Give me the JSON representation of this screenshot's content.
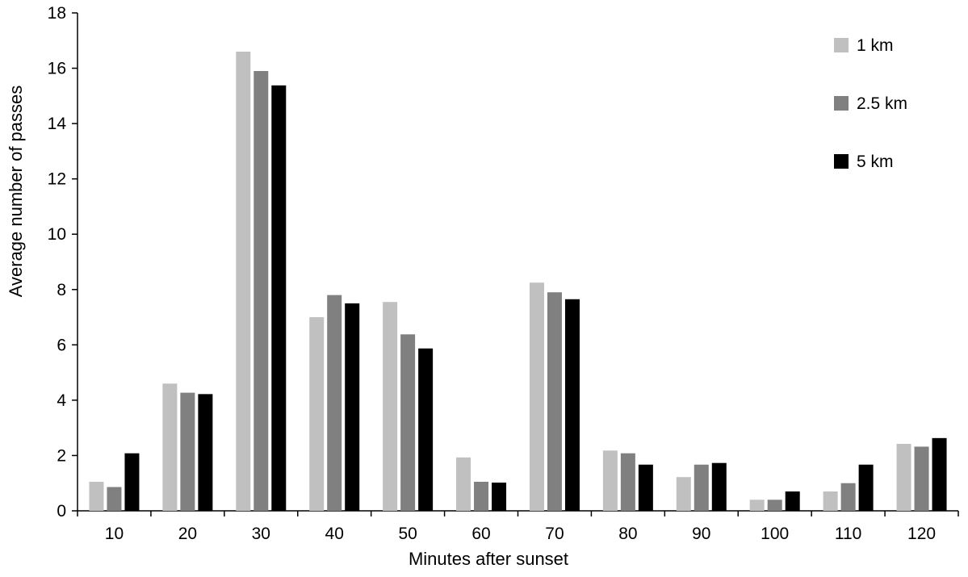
{
  "chart_data": {
    "type": "bar",
    "title": "",
    "xlabel": "Minutes after sunset",
    "ylabel": "Average number of passes",
    "categories": [
      "10",
      "20",
      "30",
      "40",
      "50",
      "60",
      "70",
      "80",
      "90",
      "100",
      "110",
      "120"
    ],
    "ylim": [
      0,
      18
    ],
    "yticks": [
      "0",
      "2",
      "4",
      "6",
      "8",
      "10",
      "12",
      "14",
      "16",
      "18"
    ],
    "grid": false,
    "legend_position": "top-right",
    "series": [
      {
        "name": "1 km",
        "color": "#c0c0c0",
        "values": [
          1.05,
          4.6,
          16.6,
          7.0,
          7.55,
          1.93,
          8.25,
          2.18,
          1.22,
          0.4,
          0.7,
          2.42
        ]
      },
      {
        "name": "2.5 km",
        "color": "#808080",
        "values": [
          0.86,
          4.27,
          15.9,
          7.8,
          6.38,
          1.05,
          7.9,
          2.08,
          1.67,
          0.4,
          1.0,
          2.32
        ]
      },
      {
        "name": "5 km",
        "color": "#000000",
        "values": [
          2.08,
          4.22,
          15.38,
          7.5,
          5.87,
          1.02,
          7.65,
          1.67,
          1.73,
          0.7,
          1.67,
          2.63
        ]
      }
    ]
  }
}
